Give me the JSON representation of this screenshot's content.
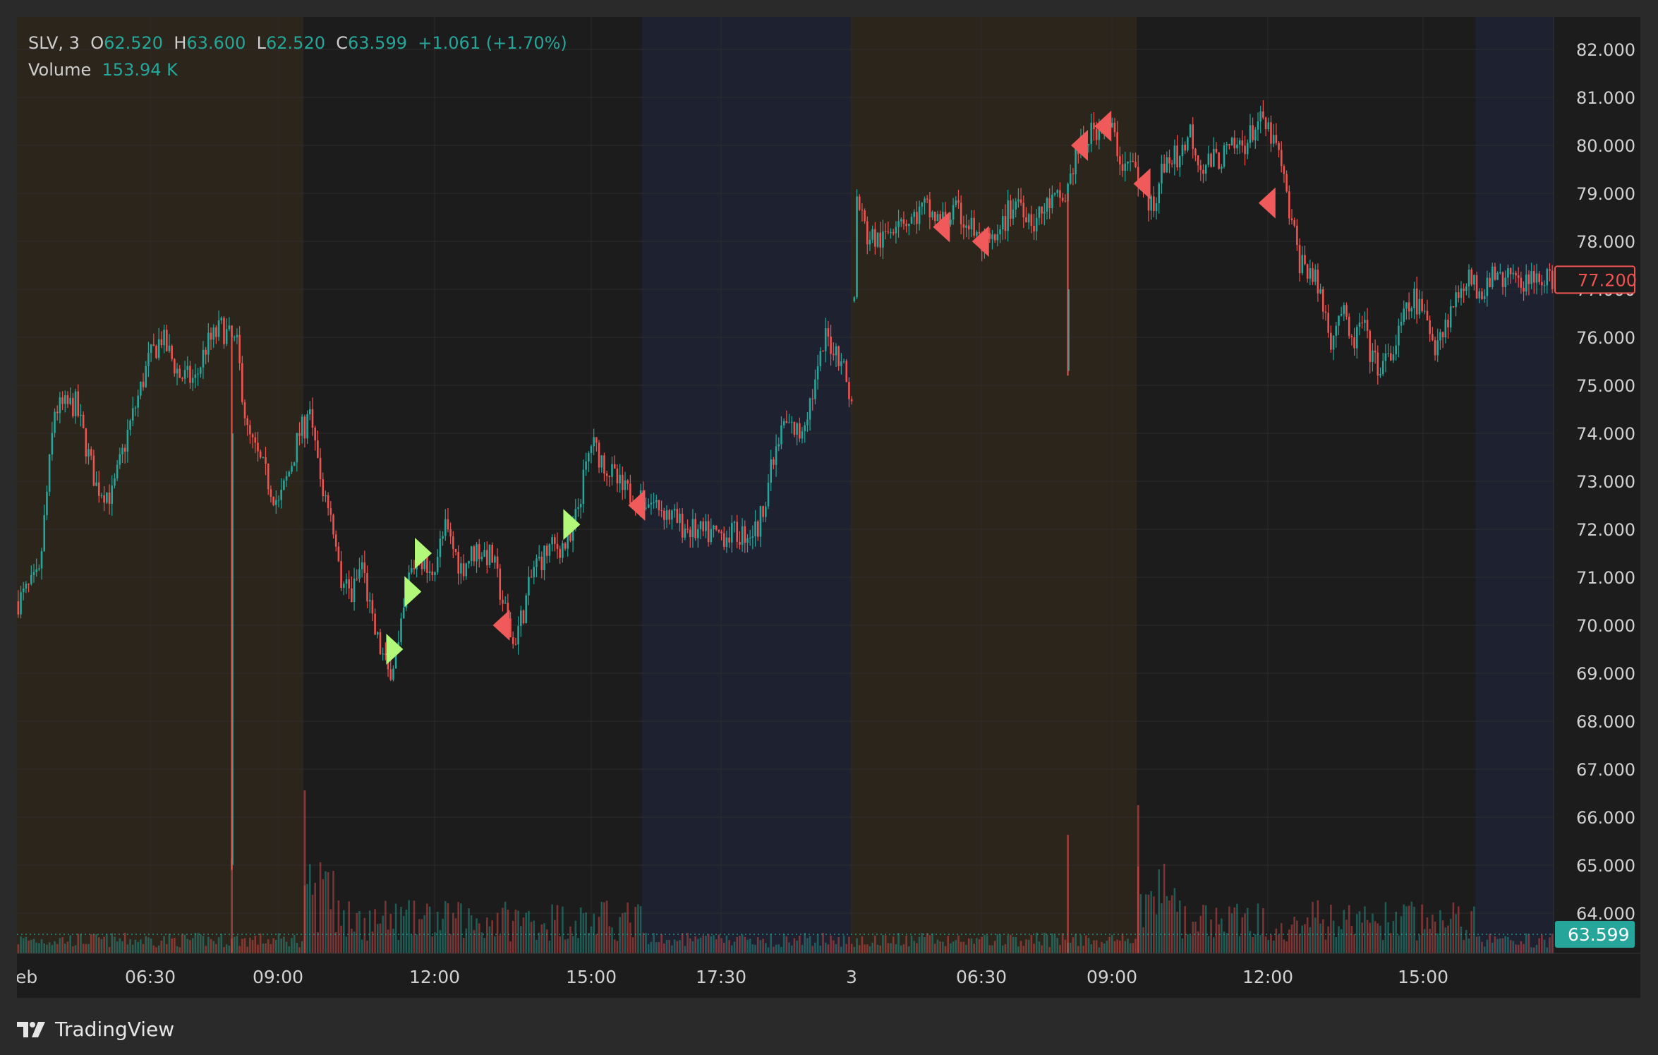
{
  "app": {
    "brand": "TradingView"
  },
  "legend": {
    "symbol": "SLV, 3",
    "o_label": "O",
    "o_value": "62.520",
    "h_label": "H",
    "h_value": "63.600",
    "l_label": "L",
    "l_value": "62.520",
    "c_label": "C",
    "c_value": "63.599",
    "change": "+1.061 (+1.70%)",
    "volume_label": "Volume",
    "volume_value": "153.94 K"
  },
  "colors": {
    "up": "#26a69a",
    "down": "#ef5350",
    "buy_marker": "#b2f97a",
    "sell_marker": "#f05a5a",
    "session_pre": "#2c251c",
    "session_regular": "#1c1c1c",
    "session_post": "#1e2130",
    "current_price_badge": "#ef5350",
    "last_value_badge": "#26a69a"
  },
  "chart_data": {
    "type": "candlestick",
    "symbol": "SLV",
    "interval": "3",
    "y_ticks": [
      "82.000",
      "81.000",
      "80.000",
      "79.000",
      "78.000",
      "77.000",
      "76.000",
      "75.000",
      "74.000",
      "73.000",
      "72.000",
      "71.000",
      "70.000",
      "69.000",
      "68.000",
      "67.000",
      "66.000",
      "65.000",
      "64.000"
    ],
    "ylim": [
      63.3,
      82.6
    ],
    "x_ticks": [
      "eb",
      "06:30",
      "09:00",
      "12:00",
      "15:00",
      "17:30",
      "3",
      "06:30",
      "09:00",
      "12:00",
      "15:00"
    ],
    "sessions": [
      {
        "type": "pre",
        "from": 0,
        "to": 110
      },
      {
        "type": "regular",
        "from": 110,
        "to": 240
      },
      {
        "type": "post",
        "from": 240,
        "to": 320
      },
      {
        "type": "pre",
        "from": 320,
        "to": 430
      },
      {
        "type": "regular",
        "from": 430,
        "to": 560
      },
      {
        "type": "post",
        "from": 560,
        "to": 590
      }
    ],
    "bar_count": 590,
    "price_path": [
      [
        0,
        70.5
      ],
      [
        8,
        71.0
      ],
      [
        14,
        74.5
      ],
      [
        22,
        74.6
      ],
      [
        30,
        72.9
      ],
      [
        36,
        72.7
      ],
      [
        42,
        74.0
      ],
      [
        50,
        75.5
      ],
      [
        55,
        76.0
      ],
      [
        62,
        75.2
      ],
      [
        68,
        75.1
      ],
      [
        72,
        75.8
      ],
      [
        78,
        76.2
      ],
      [
        84,
        75.8
      ],
      [
        88,
        74.0
      ],
      [
        92,
        73.5
      ],
      [
        96,
        73.0
      ],
      [
        100,
        72.5
      ],
      [
        104,
        73.2
      ],
      [
        108,
        74.0
      ],
      [
        112,
        74.3
      ],
      [
        116,
        73.0
      ],
      [
        120,
        72.4
      ],
      [
        124,
        71.0
      ],
      [
        128,
        70.6
      ],
      [
        132,
        71.3
      ],
      [
        136,
        70.0
      ],
      [
        142,
        69.0
      ],
      [
        146,
        69.5
      ],
      [
        150,
        71.0
      ],
      [
        154,
        71.5
      ],
      [
        158,
        71.0
      ],
      [
        164,
        72.0
      ],
      [
        170,
        71.2
      ],
      [
        176,
        71.6
      ],
      [
        182,
        71.4
      ],
      [
        186,
        70.5
      ],
      [
        190,
        69.6
      ],
      [
        194,
        70.3
      ],
      [
        198,
        71.2
      ],
      [
        204,
        71.6
      ],
      [
        212,
        71.7
      ],
      [
        220,
        73.8
      ],
      [
        226,
        73.3
      ],
      [
        232,
        72.8
      ],
      [
        240,
        72.6
      ],
      [
        246,
        72.5
      ],
      [
        254,
        72.1
      ],
      [
        262,
        71.9
      ],
      [
        270,
        71.9
      ],
      [
        278,
        71.9
      ],
      [
        284,
        72.0
      ],
      [
        288,
        73.0
      ],
      [
        294,
        74.2
      ],
      [
        300,
        74.0
      ],
      [
        306,
        75.0
      ],
      [
        310,
        76.0
      ],
      [
        316,
        75.6
      ],
      [
        320,
        74.6
      ],
      [
        322,
        78.9
      ],
      [
        326,
        78.1
      ],
      [
        332,
        78.0
      ],
      [
        338,
        78.6
      ],
      [
        342,
        78.4
      ],
      [
        348,
        78.7
      ],
      [
        354,
        78.4
      ],
      [
        360,
        78.6
      ],
      [
        366,
        78.3
      ],
      [
        370,
        77.9
      ],
      [
        376,
        78.0
      ],
      [
        380,
        78.6
      ],
      [
        384,
        78.9
      ],
      [
        390,
        78.4
      ],
      [
        396,
        78.8
      ],
      [
        402,
        78.9
      ],
      [
        406,
        79.8
      ],
      [
        410,
        80.1
      ],
      [
        416,
        80.5
      ],
      [
        420,
        80.3
      ],
      [
        424,
        79.6
      ],
      [
        428,
        79.6
      ],
      [
        432,
        79.0
      ],
      [
        436,
        78.8
      ],
      [
        440,
        79.6
      ],
      [
        446,
        79.8
      ],
      [
        450,
        80.3
      ],
      [
        454,
        79.6
      ],
      [
        460,
        79.7
      ],
      [
        466,
        79.9
      ],
      [
        472,
        80.1
      ],
      [
        476,
        80.5
      ],
      [
        480,
        80.3
      ],
      [
        484,
        79.8
      ],
      [
        488,
        78.6
      ],
      [
        492,
        77.6
      ],
      [
        496,
        77.4
      ],
      [
        500,
        76.9
      ],
      [
        504,
        76.0
      ],
      [
        508,
        76.6
      ],
      [
        512,
        75.8
      ],
      [
        516,
        76.3
      ],
      [
        520,
        75.5
      ],
      [
        524,
        75.4
      ],
      [
        528,
        75.7
      ],
      [
        532,
        76.4
      ],
      [
        536,
        76.8
      ],
      [
        540,
        76.4
      ],
      [
        544,
        75.9
      ],
      [
        548,
        76.3
      ],
      [
        552,
        76.8
      ],
      [
        556,
        77.3
      ],
      [
        560,
        77.0
      ],
      [
        564,
        77.1
      ],
      [
        568,
        77.3
      ],
      [
        572,
        77.2
      ],
      [
        576,
        77.2
      ],
      [
        582,
        77.2
      ],
      [
        590,
        77.2
      ]
    ],
    "spikes": [
      {
        "bar": 82,
        "low": 64.9,
        "high": 76.0
      },
      {
        "bar": 403,
        "low": 75.2,
        "high": 79.0
      }
    ],
    "signals": [
      {
        "type": "buy",
        "bar": 144,
        "price": 69.5
      },
      {
        "type": "buy",
        "bar": 151,
        "price": 70.7
      },
      {
        "type": "buy",
        "bar": 155,
        "price": 71.5
      },
      {
        "type": "buy",
        "bar": 212,
        "price": 72.1
      },
      {
        "type": "sell",
        "bar": 186,
        "price": 70.0
      },
      {
        "type": "sell",
        "bar": 238,
        "price": 72.5
      },
      {
        "type": "sell",
        "bar": 355,
        "price": 78.3
      },
      {
        "type": "sell",
        "bar": 370,
        "price": 78.0
      },
      {
        "type": "sell",
        "bar": 408,
        "price": 80.0
      },
      {
        "type": "sell",
        "bar": 417,
        "price": 80.4
      },
      {
        "type": "sell",
        "bar": 432,
        "price": 79.2
      },
      {
        "type": "sell",
        "bar": 480,
        "price": 78.8
      }
    ],
    "current_price": "77.200",
    "last_value": "63.599",
    "volume_spikes": [
      {
        "bar": 82,
        "level": 0.32
      },
      {
        "bar": 110,
        "level": 0.55
      },
      {
        "bar": 430,
        "level": 0.5
      },
      {
        "bar": 403,
        "level": 0.4
      }
    ]
  }
}
